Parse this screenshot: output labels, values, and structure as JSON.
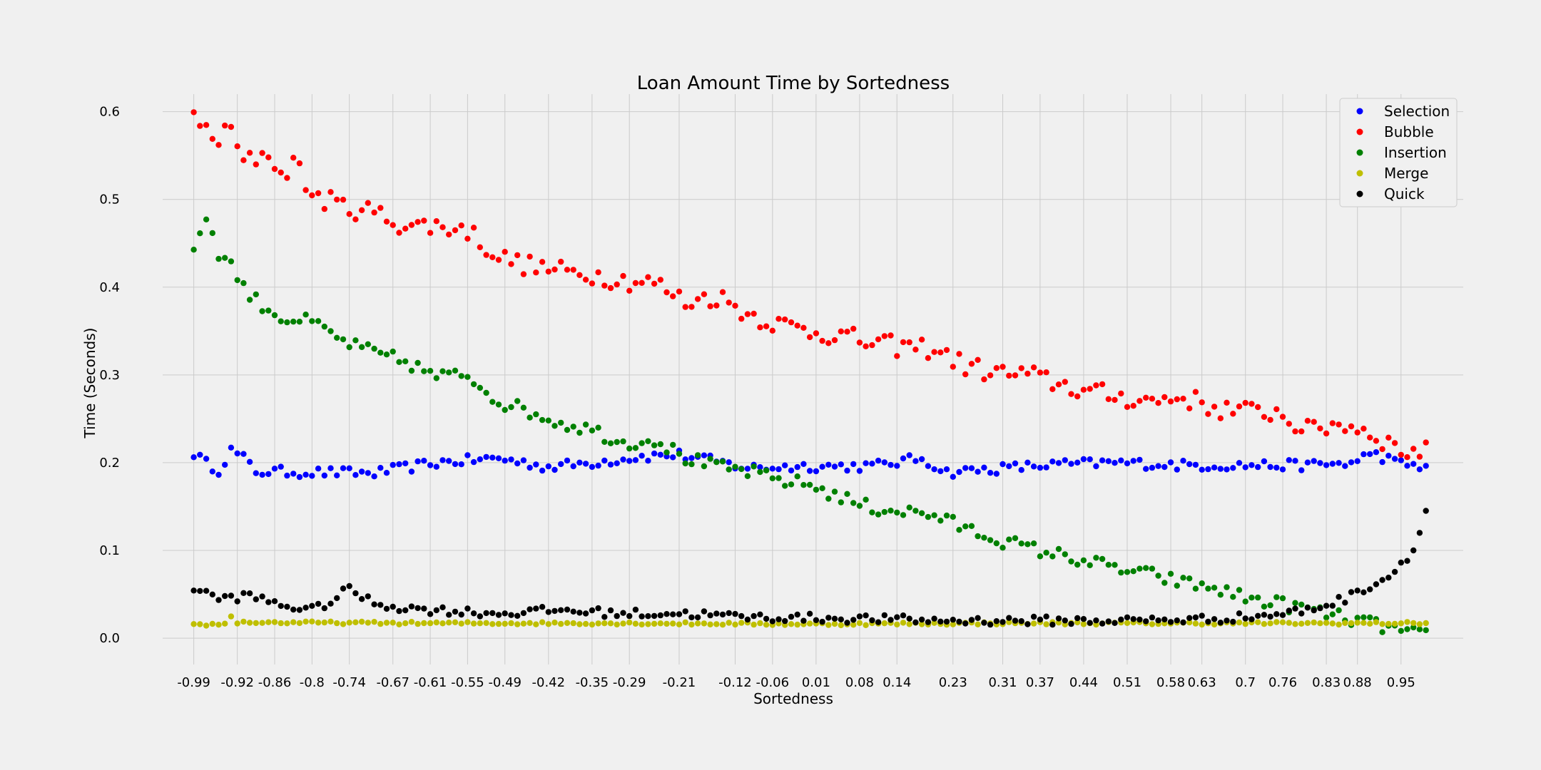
{
  "chart_data": {
    "type": "scatter",
    "title": "Loan Amount Time by Sortedness",
    "xlabel": "Sortedness",
    "ylabel": "Time (Seconds)",
    "xlim": [
      -1.04,
      1.05
    ],
    "ylim": [
      -0.03,
      0.62
    ],
    "x_ticks": [
      -0.99,
      -0.92,
      -0.86,
      -0.8,
      -0.74,
      -0.67,
      -0.61,
      -0.55,
      -0.49,
      -0.42,
      -0.35,
      -0.29,
      -0.21,
      -0.12,
      -0.06,
      0.01,
      0.08,
      0.14,
      0.23,
      0.31,
      0.37,
      0.44,
      0.51,
      0.58,
      0.63,
      0.7,
      0.76,
      0.83,
      0.88,
      0.95
    ],
    "x_tick_labels": [
      "-0.99",
      "-0.92",
      "-0.86",
      "-0.8",
      "-0.74",
      "-0.67",
      "-0.61",
      "-0.55",
      "-0.49",
      "-0.42",
      "-0.35",
      "-0.29",
      "-0.21",
      "-0.12",
      "-0.06",
      "0.01",
      "0.08",
      "0.14",
      "0.23",
      "0.31",
      "0.37",
      "0.44",
      "0.51",
      "0.58",
      "0.63",
      "0.7",
      "0.76",
      "0.83",
      "0.88",
      "0.95"
    ],
    "y_ticks": [
      0.0,
      0.1,
      0.2,
      0.3,
      0.4,
      0.5,
      0.6
    ],
    "y_tick_labels": [
      "0.0",
      "0.1",
      "0.2",
      "0.3",
      "0.4",
      "0.5",
      "0.6"
    ],
    "grid": true,
    "legend_position": "top-right",
    "x_range": {
      "start": -0.99,
      "end": 0.99,
      "count": 199
    },
    "series": [
      {
        "name": "Selection",
        "color": "#0000ff",
        "keypoints": [
          [
            -0.99,
            0.211
          ],
          [
            -0.97,
            0.199
          ],
          [
            -0.95,
            0.192
          ],
          [
            -0.93,
            0.214
          ],
          [
            -0.91,
            0.205
          ],
          [
            -0.89,
            0.19
          ],
          [
            -0.8,
            0.189
          ],
          [
            -0.7,
            0.188
          ],
          [
            -0.6,
            0.2
          ],
          [
            -0.5,
            0.205
          ],
          [
            -0.42,
            0.195
          ],
          [
            -0.35,
            0.2
          ],
          [
            -0.27,
            0.207
          ],
          [
            -0.21,
            0.209
          ],
          [
            -0.15,
            0.201
          ],
          [
            -0.1,
            0.194
          ],
          [
            0.0,
            0.196
          ],
          [
            0.1,
            0.196
          ],
          [
            0.18,
            0.205
          ],
          [
            0.22,
            0.189
          ],
          [
            0.3,
            0.193
          ],
          [
            0.4,
            0.198
          ],
          [
            0.5,
            0.2
          ],
          [
            0.6,
            0.197
          ],
          [
            0.7,
            0.197
          ],
          [
            0.8,
            0.197
          ],
          [
            0.88,
            0.2
          ],
          [
            0.9,
            0.212
          ],
          [
            0.95,
            0.198
          ],
          [
            0.99,
            0.196
          ]
        ]
      },
      {
        "name": "Bubble",
        "color": "#ff0000",
        "keypoints": [
          [
            -0.99,
            0.59
          ],
          [
            -0.95,
            0.568
          ],
          [
            -0.93,
            0.58
          ],
          [
            -0.91,
            0.54
          ],
          [
            -0.87,
            0.555
          ],
          [
            -0.85,
            0.525
          ],
          [
            -0.83,
            0.545
          ],
          [
            -0.8,
            0.505
          ],
          [
            -0.75,
            0.492
          ],
          [
            -0.7,
            0.485
          ],
          [
            -0.65,
            0.47
          ],
          [
            -0.6,
            0.47
          ],
          [
            -0.55,
            0.465
          ],
          [
            -0.5,
            0.434
          ],
          [
            -0.45,
            0.424
          ],
          [
            -0.4,
            0.418
          ],
          [
            -0.35,
            0.415
          ],
          [
            -0.3,
            0.408
          ],
          [
            -0.25,
            0.405
          ],
          [
            -0.2,
            0.383
          ],
          [
            -0.15,
            0.39
          ],
          [
            -0.1,
            0.37
          ],
          [
            -0.05,
            0.358
          ],
          [
            0.0,
            0.35
          ],
          [
            0.05,
            0.345
          ],
          [
            0.1,
            0.335
          ],
          [
            0.15,
            0.332
          ],
          [
            0.2,
            0.33
          ],
          [
            0.25,
            0.31
          ],
          [
            0.3,
            0.302
          ],
          [
            0.35,
            0.3
          ],
          [
            0.4,
            0.29
          ],
          [
            0.45,
            0.28
          ],
          [
            0.5,
            0.275
          ],
          [
            0.55,
            0.27
          ],
          [
            0.6,
            0.275
          ],
          [
            0.65,
            0.262
          ],
          [
            0.7,
            0.258
          ],
          [
            0.75,
            0.258
          ],
          [
            0.8,
            0.236
          ],
          [
            0.85,
            0.245
          ],
          [
            0.9,
            0.235
          ],
          [
            0.95,
            0.214
          ],
          [
            0.99,
            0.212
          ]
        ]
      },
      {
        "name": "Insertion",
        "color": "#008000",
        "keypoints": [
          [
            -0.99,
            0.447
          ],
          [
            -0.97,
            0.48
          ],
          [
            -0.95,
            0.44
          ],
          [
            -0.93,
            0.425
          ],
          [
            -0.9,
            0.39
          ],
          [
            -0.85,
            0.365
          ],
          [
            -0.8,
            0.36
          ],
          [
            -0.75,
            0.338
          ],
          [
            -0.7,
            0.325
          ],
          [
            -0.65,
            0.315
          ],
          [
            -0.6,
            0.298
          ],
          [
            -0.55,
            0.3
          ],
          [
            -0.5,
            0.27
          ],
          [
            -0.45,
            0.258
          ],
          [
            -0.4,
            0.245
          ],
          [
            -0.35,
            0.238
          ],
          [
            -0.3,
            0.222
          ],
          [
            -0.25,
            0.227
          ],
          [
            -0.2,
            0.205
          ],
          [
            -0.15,
            0.195
          ],
          [
            -0.1,
            0.19
          ],
          [
            -0.05,
            0.18
          ],
          [
            0.0,
            0.175
          ],
          [
            0.05,
            0.16
          ],
          [
            0.1,
            0.148
          ],
          [
            0.15,
            0.145
          ],
          [
            0.2,
            0.14
          ],
          [
            0.25,
            0.125
          ],
          [
            0.3,
            0.113
          ],
          [
            0.35,
            0.103
          ],
          [
            0.4,
            0.095
          ],
          [
            0.45,
            0.087
          ],
          [
            0.5,
            0.078
          ],
          [
            0.55,
            0.072
          ],
          [
            0.6,
            0.063
          ],
          [
            0.65,
            0.057
          ],
          [
            0.7,
            0.046
          ],
          [
            0.75,
            0.04
          ],
          [
            0.8,
            0.033
          ],
          [
            0.85,
            0.024
          ],
          [
            0.9,
            0.017
          ],
          [
            0.95,
            0.008
          ],
          [
            0.99,
            0.002
          ]
        ]
      },
      {
        "name": "Merge",
        "color": "#bfbf00",
        "keypoints": [
          [
            -0.99,
            0.015
          ],
          [
            -0.94,
            0.016
          ],
          [
            -0.93,
            0.025
          ],
          [
            -0.92,
            0.018
          ],
          [
            -0.6,
            0.017
          ],
          [
            -0.3,
            0.017
          ],
          [
            0.0,
            0.016
          ],
          [
            0.3,
            0.017
          ],
          [
            0.6,
            0.017
          ],
          [
            0.99,
            0.017
          ]
        ]
      },
      {
        "name": "Quick",
        "color": "#000000",
        "keypoints": [
          [
            -0.99,
            0.057
          ],
          [
            -0.95,
            0.045
          ],
          [
            -0.9,
            0.048
          ],
          [
            -0.85,
            0.038
          ],
          [
            -0.8,
            0.032
          ],
          [
            -0.76,
            0.045
          ],
          [
            -0.75,
            0.058
          ],
          [
            -0.7,
            0.04
          ],
          [
            -0.65,
            0.034
          ],
          [
            -0.6,
            0.032
          ],
          [
            -0.5,
            0.028
          ],
          [
            -0.4,
            0.032
          ],
          [
            -0.3,
            0.028
          ],
          [
            -0.2,
            0.028
          ],
          [
            -0.1,
            0.024
          ],
          [
            0.0,
            0.023
          ],
          [
            0.1,
            0.022
          ],
          [
            0.2,
            0.02
          ],
          [
            0.3,
            0.02
          ],
          [
            0.4,
            0.02
          ],
          [
            0.5,
            0.02
          ],
          [
            0.6,
            0.021
          ],
          [
            0.65,
            0.022
          ],
          [
            0.7,
            0.024
          ],
          [
            0.75,
            0.027
          ],
          [
            0.8,
            0.032
          ],
          [
            0.83,
            0.038
          ],
          [
            0.86,
            0.045
          ],
          [
            0.88,
            0.052
          ],
          [
            0.9,
            0.06
          ],
          [
            0.93,
            0.07
          ],
          [
            0.95,
            0.085
          ],
          [
            0.97,
            0.1
          ],
          [
            0.98,
            0.125
          ],
          [
            0.99,
            0.143
          ]
        ]
      }
    ]
  }
}
